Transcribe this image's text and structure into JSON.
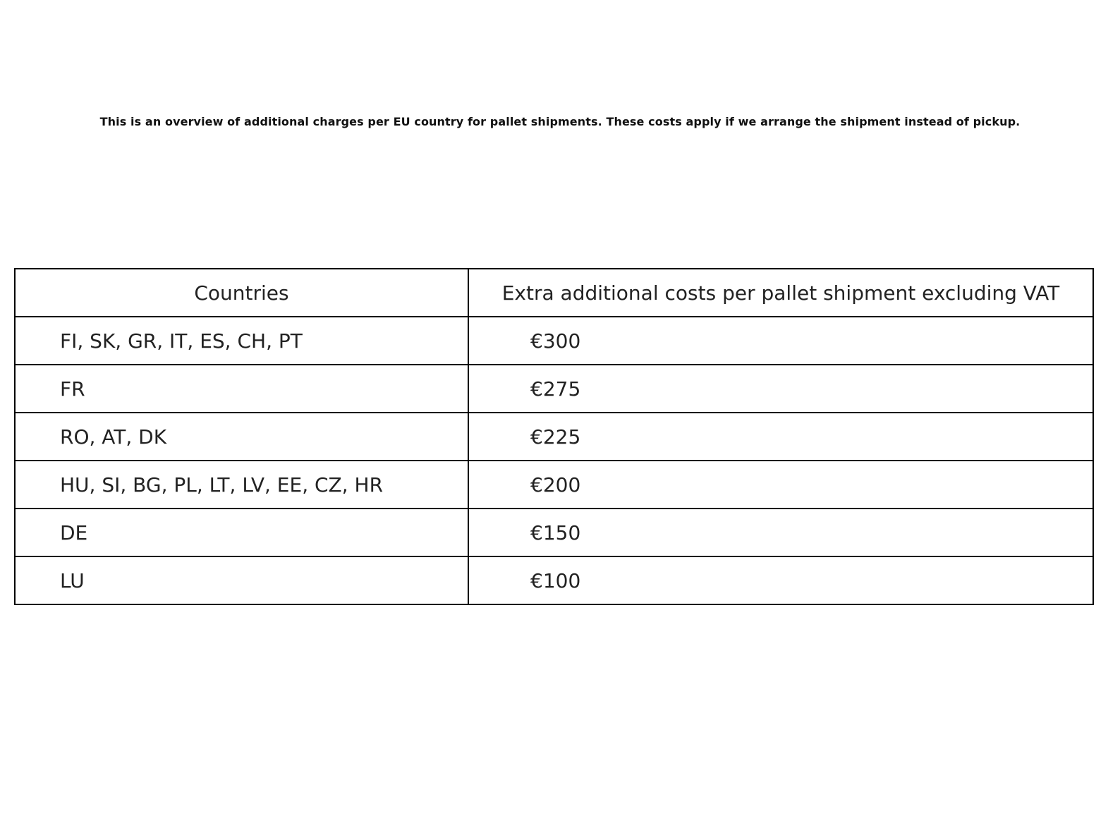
{
  "title": "This is an overview of additional charges per EU country for pallet shipments. These costs apply if we arrange the shipment instead of pickup.",
  "chart_data": {
    "type": "table",
    "title": "This is an overview of additional charges per EU country for pallet shipments. These costs apply if we arrange the shipment instead of pickup.",
    "columns": [
      "Countries",
      "Extra additional costs per pallet shipment excluding VAT"
    ],
    "rows": [
      [
        "FI, SK, GR, IT, ES, CH, PT",
        "€300"
      ],
      [
        "FR",
        "€275"
      ],
      [
        "RO, AT, DK",
        "€225"
      ],
      [
        "HU, SI, BG, PL, LT, LV, EE, CZ, HR",
        "€200"
      ],
      [
        "DE",
        "€150"
      ],
      [
        "LU",
        "€100"
      ]
    ]
  }
}
